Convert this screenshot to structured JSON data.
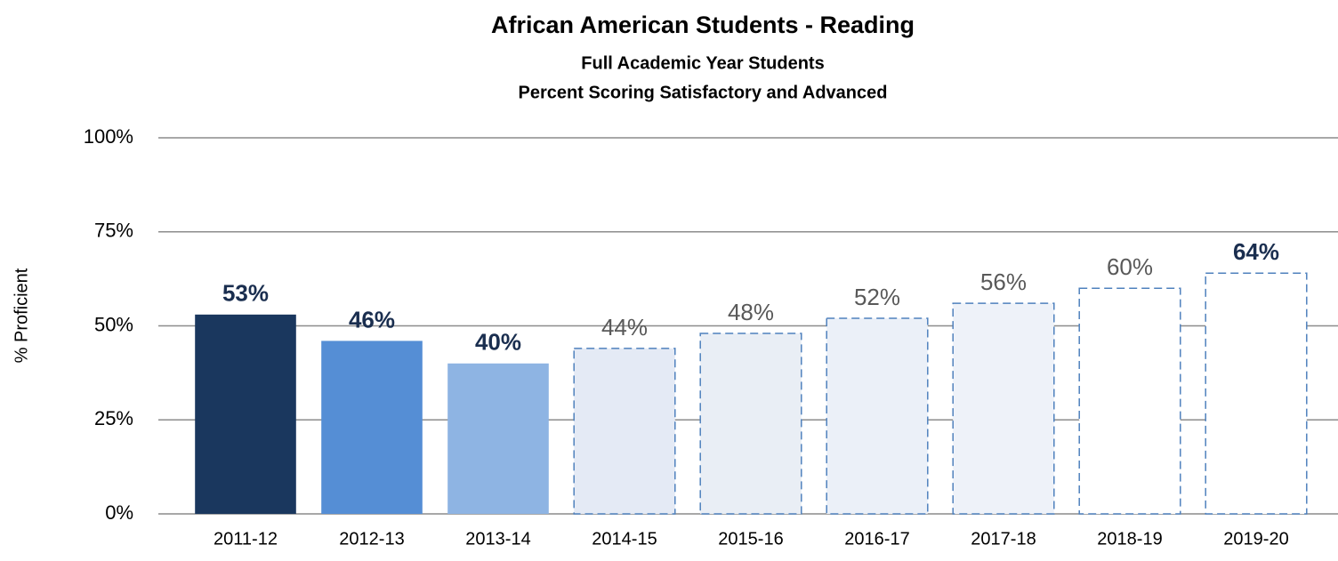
{
  "chart_data": {
    "type": "bar",
    "title": "African American Students - Reading",
    "subtitle": "Full Academic Year Students",
    "subtitle2": "Percent Scoring Satisfactory and Advanced",
    "y_label": "% Proficient",
    "categories": [
      "2011-12",
      "2012-13",
      "2013-14",
      "2014-15",
      "2015-16",
      "2016-17",
      "2017-18",
      "2018-19",
      "2019-20"
    ],
    "values": [
      53,
      46,
      40,
      44,
      48,
      52,
      56,
      60,
      64
    ],
    "value_labels": [
      "53%",
      "46%",
      "40%",
      "44%",
      "48%",
      "52%",
      "56%",
      "60%",
      "64%"
    ],
    "colors": [
      "#1a375e",
      "#558ed5",
      "#8eb4e3",
      "#e4eaf5",
      "#e9eef5",
      "#ebf0f8",
      "#eef2f9",
      "#ffffff",
      "#ffffff"
    ],
    "dashed": [
      false,
      false,
      false,
      true,
      true,
      true,
      true,
      true,
      true
    ],
    "border_color": "#4f81bd",
    "label_colors": [
      "#1a2e4f",
      "#1a2e4f",
      "#1a2e4f",
      "#595959",
      "#595959",
      "#595959",
      "#595959",
      "#595959",
      "#1a2e4f"
    ],
    "label_bold": [
      true,
      true,
      true,
      false,
      false,
      false,
      false,
      false,
      true
    ],
    "ylim": [
      0,
      100
    ],
    "yticks": [
      {
        "value": 0,
        "label": "0%"
      },
      {
        "value": 25,
        "label": "25%"
      },
      {
        "value": 50,
        "label": "50%"
      },
      {
        "value": 75,
        "label": "75%"
      },
      {
        "value": 100,
        "label": "100%"
      }
    ],
    "grid": true
  }
}
